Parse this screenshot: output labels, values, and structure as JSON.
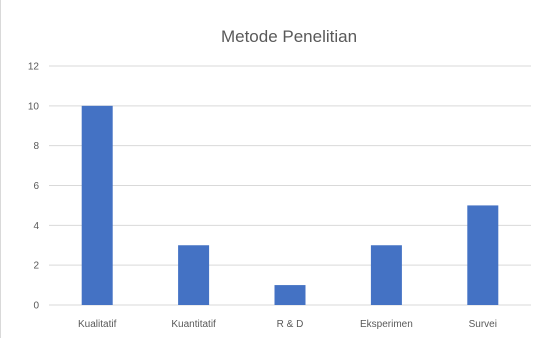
{
  "chart_data": {
    "type": "bar",
    "title": "Metode Penelitian",
    "categories": [
      "Kualitatif",
      "Kuantitatif",
      "R & D",
      "Eksperimen",
      "Survei"
    ],
    "values": [
      10,
      3,
      1,
      3,
      5
    ],
    "ylim": [
      0,
      12
    ],
    "yticks": [
      "0",
      "2",
      "4",
      "6",
      "8",
      "10",
      "12"
    ],
    "xlabel": "",
    "ylabel": "",
    "grid": true,
    "legend": "none",
    "bar_color": "#4472c4",
    "grid_color": "#d9d9d9",
    "text_color": "#595959"
  }
}
